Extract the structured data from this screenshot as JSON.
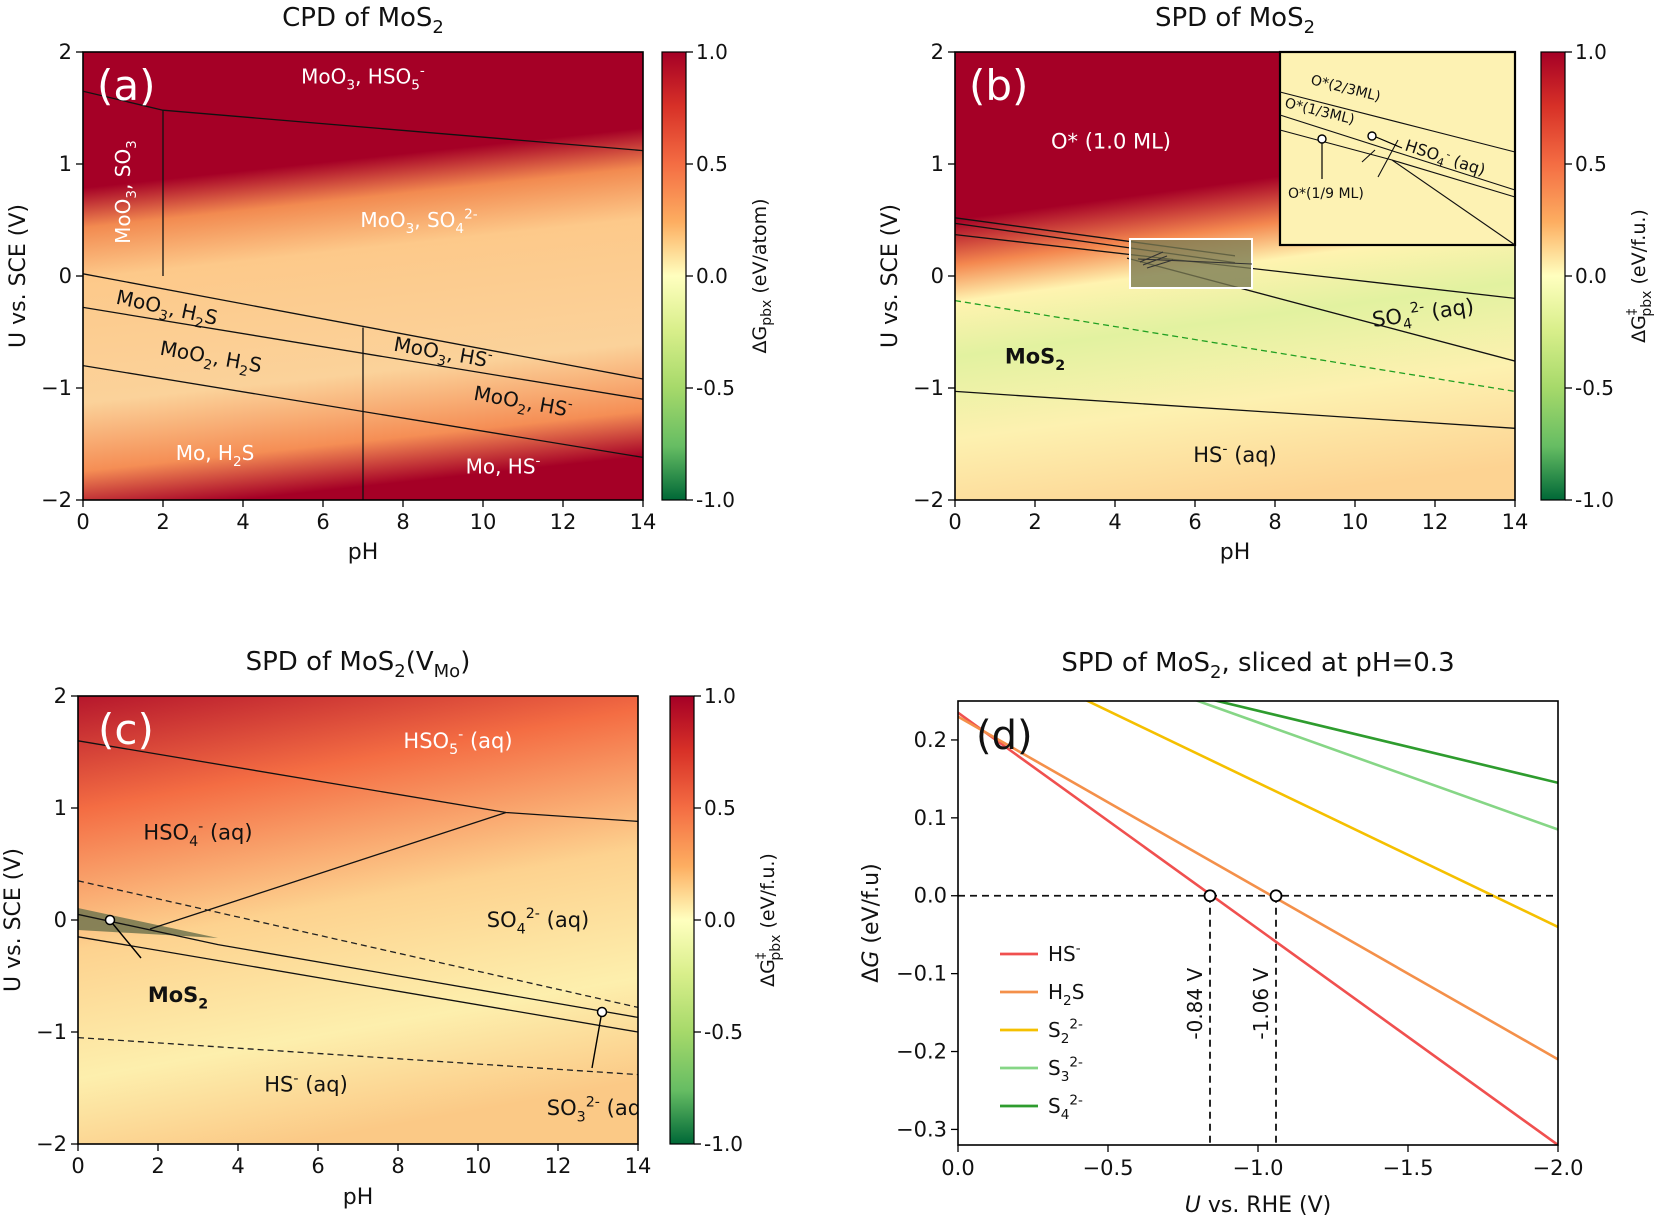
{
  "chart_data": [
    {
      "panel": "a",
      "type": "heatmap",
      "title": "CPD of MoS",
      "title_sub": "2",
      "label": "(a)",
      "xlabel": "pH",
      "ylabel": "U vs. SCE (V)",
      "xlim": [
        0,
        14
      ],
      "ylim": [
        -2,
        2
      ],
      "xticks": [
        "0",
        "2",
        "4",
        "6",
        "8",
        "10",
        "12",
        "14"
      ],
      "yticks": [
        "2",
        "1",
        "0",
        "−1",
        "−2"
      ],
      "colorbar": {
        "label": "ΔG",
        "label_sub": "pbx",
        "label_rest": " (eV/atom)",
        "ticks": [
          "1.0",
          "0.5",
          "0.0",
          "-0.5",
          "-1.0"
        ],
        "range": [
          -1,
          1
        ]
      },
      "regions": [
        {
          "id": "moo3-hso5",
          "parts": [
            [
              "MoO",
              ""
            ],
            [
              "3",
              "sub"
            ],
            [
              ", HSO",
              ""
            ],
            [
              "5",
              "sub"
            ],
            [
              "-",
              "sup"
            ]
          ],
          "pH": 7.0,
          "U": 1.78
        },
        {
          "id": "moo3-so3",
          "parts": [
            [
              "MoO",
              ""
            ],
            [
              "3",
              "sub"
            ],
            [
              ", SO",
              ""
            ],
            [
              "3",
              "sub"
            ]
          ],
          "pH": 1.0,
          "U": 0.75,
          "rotate": true
        },
        {
          "id": "moo3-so4",
          "parts": [
            [
              "MoO",
              ""
            ],
            [
              "3",
              "sub"
            ],
            [
              ", SO",
              ""
            ],
            [
              "4",
              "sub"
            ],
            [
              "2-",
              "sup"
            ]
          ],
          "pH": 8.4,
          "U": 0.5
        },
        {
          "id": "moo3-h2s",
          "parts": [
            [
              "MoO",
              ""
            ],
            [
              "3",
              "sub"
            ],
            [
              ", H",
              ""
            ],
            [
              "2",
              "sub"
            ],
            [
              "S",
              ""
            ]
          ],
          "pH": 2.1,
          "U": -0.28,
          "angle": 12
        },
        {
          "id": "moo2-h2s",
          "parts": [
            [
              "MoO",
              ""
            ],
            [
              "2",
              "sub"
            ],
            [
              ", H",
              ""
            ],
            [
              "2",
              "sub"
            ],
            [
              "S",
              ""
            ]
          ],
          "pH": 3.2,
          "U": -0.72,
          "angle": 10
        },
        {
          "id": "moo3-hs",
          "parts": [
            [
              "MoO",
              ""
            ],
            [
              "3",
              "sub"
            ],
            [
              ", HS",
              ""
            ],
            [
              "-",
              "sup"
            ]
          ],
          "pH": 9.0,
          "U": -0.68,
          "angle": 10
        },
        {
          "id": "moo2-hs",
          "parts": [
            [
              "MoO",
              ""
            ],
            [
              "2",
              "sub"
            ],
            [
              ", HS",
              ""
            ],
            [
              "-",
              "sup"
            ]
          ],
          "pH": 11.0,
          "U": -1.12,
          "angle": 10
        },
        {
          "id": "mo-h2s",
          "parts": [
            [
              "Mo, H",
              ""
            ],
            [
              "2",
              "sub"
            ],
            [
              "S",
              ""
            ]
          ],
          "pH": 3.3,
          "U": -1.58
        },
        {
          "id": "mo-hs",
          "parts": [
            [
              "Mo, HS",
              ""
            ],
            [
              "-",
              "sup"
            ]
          ],
          "pH": 10.5,
          "U": -1.7
        }
      ],
      "boundaries": [
        {
          "points": [
            [
              0,
              1.65
            ],
            [
              2,
              1.48
            ],
            [
              14,
              1.12
            ]
          ]
        },
        {
          "points": [
            [
              2,
              1.48
            ],
            [
              2,
              0.0
            ]
          ]
        },
        {
          "points": [
            [
              0,
              0.02
            ],
            [
              14,
              -0.92
            ]
          ]
        },
        {
          "points": [
            [
              0,
              -0.28
            ],
            [
              14,
              -1.1
            ]
          ]
        },
        {
          "points": [
            [
              0,
              -0.8
            ],
            [
              14,
              -1.62
            ]
          ]
        },
        {
          "points": [
            [
              7,
              -0.46
            ],
            [
              7,
              -2.0
            ]
          ]
        }
      ]
    },
    {
      "panel": "b",
      "type": "heatmap",
      "title": "SPD of MoS",
      "title_sub": "2",
      "label": "(b)",
      "xlabel": "pH",
      "ylabel": "U vs. SCE (V)",
      "xlim": [
        0,
        14
      ],
      "ylim": [
        -2,
        2
      ],
      "xticks": [
        "0",
        "2",
        "4",
        "6",
        "8",
        "10",
        "12",
        "14"
      ],
      "yticks": [
        "2",
        "1",
        "0",
        "−1",
        "−2"
      ],
      "colorbar": {
        "label": "ΔG",
        "label_sub": "pbx",
        "label_sup": "‡",
        "label_rest": " (eV/f.u.)",
        "ticks": [
          "1.0",
          "0.5",
          "0.0",
          "-0.5",
          "-1.0"
        ],
        "range": [
          -1,
          1
        ]
      },
      "regions": [
        {
          "id": "o-1ml",
          "parts": [
            [
              "O* (1.0 ML)",
              ""
            ]
          ],
          "pH": 3.9,
          "U": 1.2
        },
        {
          "id": "so4-aq",
          "parts": [
            [
              "SO",
              ""
            ],
            [
              "4",
              "sub"
            ],
            [
              "2-",
              "sup"
            ],
            [
              " (aq)",
              ""
            ]
          ],
          "pH": 11.7,
          "U": -0.33,
          "angle": -8
        },
        {
          "id": "mos2",
          "parts": [
            [
              "MoS",
              "bold"
            ],
            [
              "2",
              "boldsub"
            ]
          ],
          "pH": 2.0,
          "U": -0.72
        },
        {
          "id": "hs-aq",
          "parts": [
            [
              "HS",
              ""
            ],
            [
              "-",
              "sup"
            ],
            [
              " (aq)",
              ""
            ]
          ],
          "pH": 7.0,
          "U": -1.6
        }
      ],
      "boundaries": [
        {
          "points": [
            [
              0,
              0.52
            ],
            [
              7,
              0.18
            ]
          ]
        },
        {
          "points": [
            [
              0,
              0.47
            ],
            [
              7,
              0.12
            ]
          ]
        },
        {
          "points": [
            [
              0,
              0.37
            ],
            [
              14,
              -0.2
            ]
          ]
        },
        {
          "points": [
            [
              4.3,
              0.16
            ],
            [
              14,
              -0.76
            ]
          ]
        },
        {
          "points": [
            [
              0,
              -1.03
            ],
            [
              14,
              -1.36
            ]
          ]
        },
        {
          "points": [
            [
              0,
              -0.22
            ],
            [
              14,
              -1.03
            ]
          ],
          "dashed": true,
          "color": "#22a022"
        }
      ],
      "inset": {
        "labels": [
          "O*(2/3ML)",
          "O*(1/3ML)",
          "O*(1/9 ML)",
          "HSO4-(aq)"
        ],
        "label_parts": {
          "o23": [
            [
              "O*(2/3ML)",
              ""
            ]
          ],
          "o13": [
            [
              "O*(1/3ML)",
              ""
            ]
          ],
          "o19": [
            [
              "O*(1/9 ML)",
              ""
            ]
          ],
          "hso4": [
            [
              "HSO",
              ""
            ],
            [
              "4",
              "sub"
            ],
            [
              "-",
              "sup"
            ],
            [
              " (aq)",
              ""
            ]
          ]
        }
      }
    },
    {
      "panel": "c",
      "type": "heatmap",
      "title": "SPD of MoS",
      "title_sub": "2",
      "title_rest": "(V",
      "title_sub2": "Mo",
      "title_end": ")",
      "label": "(c)",
      "xlabel": "pH",
      "ylabel": "U vs. SCE (V)",
      "xlim": [
        0,
        14
      ],
      "ylim": [
        -2,
        2
      ],
      "xticks": [
        "0",
        "2",
        "4",
        "6",
        "8",
        "10",
        "12",
        "14"
      ],
      "yticks": [
        "2",
        "1",
        "0",
        "−1",
        "−2"
      ],
      "colorbar": {
        "label": "ΔG",
        "label_sub": "pbx",
        "label_sup": "‡",
        "label_rest": " (eV/f.u.)",
        "ticks": [
          "1.0",
          "0.5",
          "0.0",
          "-0.5",
          "-1.0"
        ],
        "range": [
          -1,
          1
        ]
      },
      "regions": [
        {
          "id": "hso5-aq",
          "parts": [
            [
              "HSO",
              ""
            ],
            [
              "5",
              "sub"
            ],
            [
              "-",
              "sup"
            ],
            [
              " (aq)",
              ""
            ]
          ],
          "pH": 9.5,
          "U": 1.6
        },
        {
          "id": "hso4-aq",
          "parts": [
            [
              "HSO",
              ""
            ],
            [
              "4",
              "sub"
            ],
            [
              "-",
              "sup"
            ],
            [
              " (aq)",
              ""
            ]
          ],
          "pH": 3.0,
          "U": 0.78
        },
        {
          "id": "so4-aq",
          "parts": [
            [
              "SO",
              ""
            ],
            [
              "4",
              "sub"
            ],
            [
              "2-",
              "sup"
            ],
            [
              " (aq)",
              ""
            ]
          ],
          "pH": 11.5,
          "U": 0.0
        },
        {
          "id": "hs-aq",
          "parts": [
            [
              "HS",
              ""
            ],
            [
              "-",
              "sup"
            ],
            [
              " (aq)",
              ""
            ]
          ],
          "pH": 5.7,
          "U": -1.47
        },
        {
          "id": "mos2",
          "parts": [
            [
              "MoS",
              "bold"
            ],
            [
              "2",
              "boldsub"
            ]
          ],
          "pH": 2.5,
          "U": -0.67
        },
        {
          "id": "so3-aq",
          "parts": [
            [
              "SO",
              ""
            ],
            [
              "3",
              "sub"
            ],
            [
              "2-",
              "sup"
            ],
            [
              " (aq)",
              ""
            ]
          ],
          "pH": 13.0,
          "U": -1.68
        }
      ],
      "boundaries": [
        {
          "points": [
            [
              0,
              1.6
            ],
            [
              10.7,
              0.96
            ],
            [
              14,
              0.88
            ]
          ]
        },
        {
          "points": [
            [
              1.8,
              -0.08
            ],
            [
              10.7,
              0.96
            ]
          ]
        },
        {
          "points": [
            [
              0,
              0.05
            ],
            [
              3.5,
              -0.22
            ],
            [
              14,
              -0.87
            ]
          ]
        },
        {
          "points": [
            [
              0,
              -0.15
            ],
            [
              14,
              -1.0
            ]
          ]
        },
        {
          "points": [
            [
              0,
              0.35
            ],
            [
              14,
              -0.78
            ]
          ],
          "dashed": true,
          "color": "#222222"
        },
        {
          "points": [
            [
              0,
              -1.05
            ],
            [
              14,
              -1.38
            ]
          ],
          "dashed": true,
          "color": "#222222"
        }
      ]
    },
    {
      "panel": "d",
      "type": "line",
      "title": "SPD of MoS",
      "title_sub": "2",
      "title_rest": ", sliced at pH=0.3",
      "label": "(d)",
      "xlabel": "U vs. RHE (V)",
      "ylabel": "ΔG (eV/f.u)",
      "xlim": [
        0.0,
        -2.0
      ],
      "ylim": [
        -0.32,
        0.25
      ],
      "xticks": [
        0.0,
        -0.5,
        -1.0,
        -1.5,
        -2.0
      ],
      "xtick_labels": [
        "0.0",
        "−0.5",
        "−1.0",
        "−1.5",
        "−2.0"
      ],
      "yticks": [
        0.2,
        0.1,
        0.0,
        -0.1,
        -0.2,
        -0.3
      ],
      "ytick_labels": [
        "0.2",
        "0.1",
        "0.0",
        "−0.1",
        "−0.2",
        "−0.3"
      ],
      "series": [
        {
          "name": "HS-",
          "parts": [
            [
              "HS",
              ""
            ],
            [
              "-",
              "sup"
            ]
          ],
          "color": "#f0504f",
          "x": [
            0.0,
            -2.0
          ],
          "y": [
            0.235,
            -0.32
          ]
        },
        {
          "name": "H2S",
          "parts": [
            [
              "H",
              ""
            ],
            [
              "2",
              "sub"
            ],
            [
              "S",
              ""
            ]
          ],
          "color": "#f4904a",
          "x": [
            0.0,
            -2.0
          ],
          "y": [
            0.23,
            -0.21
          ]
        },
        {
          "name": "S2 2-",
          "parts": [
            [
              "S",
              ""
            ],
            [
              "2",
              "sub"
            ],
            [
              "2-",
              "sup"
            ]
          ],
          "color": "#f5c000",
          "x": [
            0.0,
            -2.0
          ],
          "y": [
            0.33,
            -0.04
          ]
        },
        {
          "name": "S3 2-",
          "parts": [
            [
              "S",
              ""
            ],
            [
              "3",
              "sub"
            ],
            [
              "2-",
              "sup"
            ]
          ],
          "color": "#86d686",
          "x": [
            0.0,
            -2.0
          ],
          "y": [
            0.36,
            0.085
          ]
        },
        {
          "name": "S4 2-",
          "parts": [
            [
              "S",
              ""
            ],
            [
              "4",
              "sub"
            ],
            [
              "2-",
              "sup"
            ]
          ],
          "color": "#2e9c2e",
          "x": [
            0.0,
            -2.0
          ],
          "y": [
            0.33,
            0.145
          ]
        }
      ],
      "markers": [
        {
          "label": "-0.84 V",
          "x": -0.84,
          "y": 0.0
        },
        {
          "label": "-1.06 V",
          "x": -1.06,
          "y": 0.0
        }
      ],
      "reference_line": {
        "y": 0.0,
        "dashed": true
      }
    }
  ]
}
